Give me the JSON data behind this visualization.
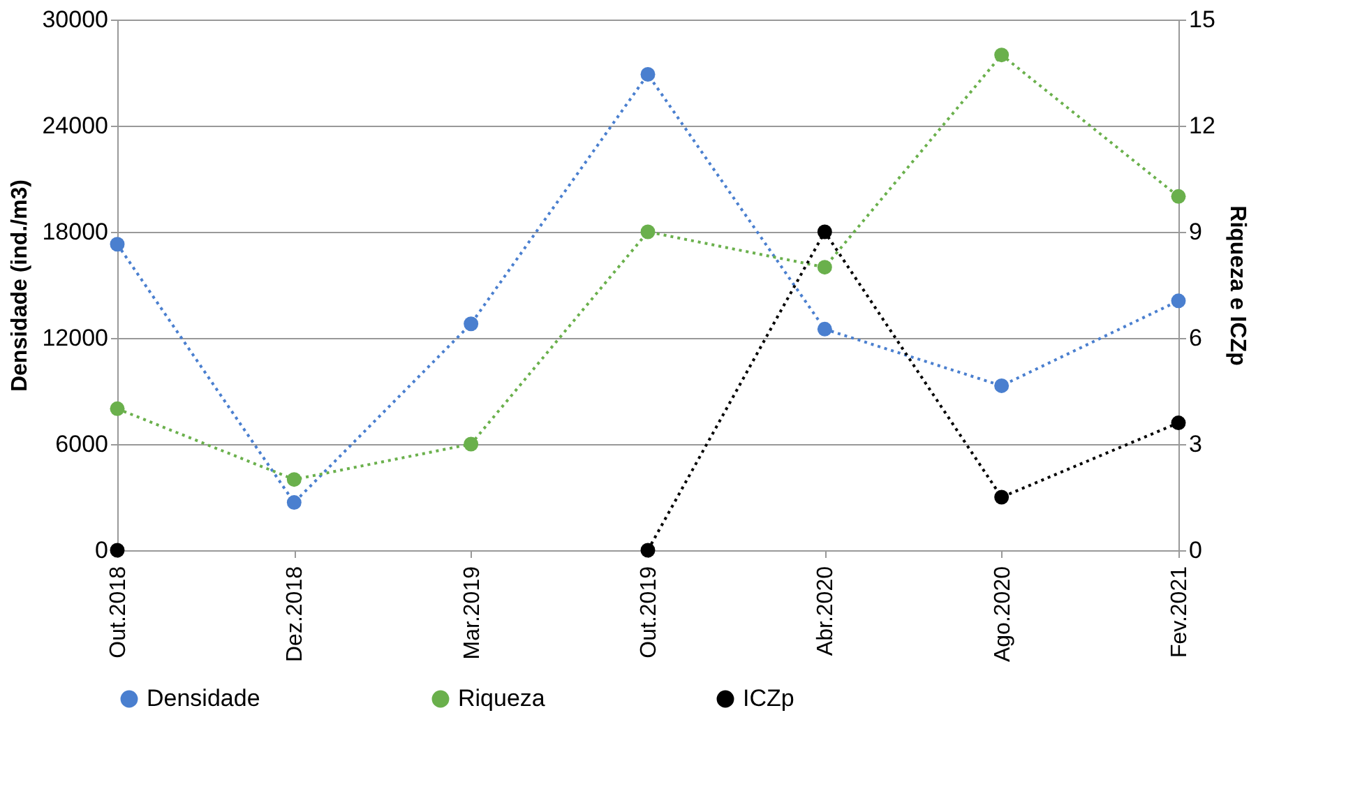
{
  "chart_data": {
    "type": "line",
    "ylabel": "Densidade (ind./m3)",
    "y2label": "Riqueza e ICZp",
    "categories": [
      "Out.2018",
      "Dez.2018",
      "Mar.2019",
      "Out.2019",
      "Abr.2020",
      "Ago.2020",
      "Fev.2021"
    ],
    "series": [
      {
        "name": "Densidade",
        "color": "#4a7fcf",
        "values": [
          17300,
          2700,
          12800,
          26900,
          12500,
          9300,
          14100
        ]
      },
      {
        "name": "Riqueza",
        "color": "#6ab04c",
        "axis": "y2",
        "values": [
          4,
          2,
          3,
          9,
          8,
          14,
          10
        ]
      },
      {
        "name": "ICZp",
        "color": "#000000",
        "axis": "y2",
        "values": [
          0,
          null,
          null,
          0,
          9,
          1.5,
          3.6
        ]
      }
    ],
    "ylim": [
      0,
      30000
    ],
    "yticks": [
      0,
      6000,
      12000,
      18000,
      24000,
      30000
    ],
    "y2lim": [
      0,
      15
    ],
    "y2ticks": [
      0,
      3,
      6,
      9,
      12,
      15
    ],
    "grid": "y",
    "legend": "bottom",
    "marker": "circle",
    "line_style": "dotted"
  }
}
